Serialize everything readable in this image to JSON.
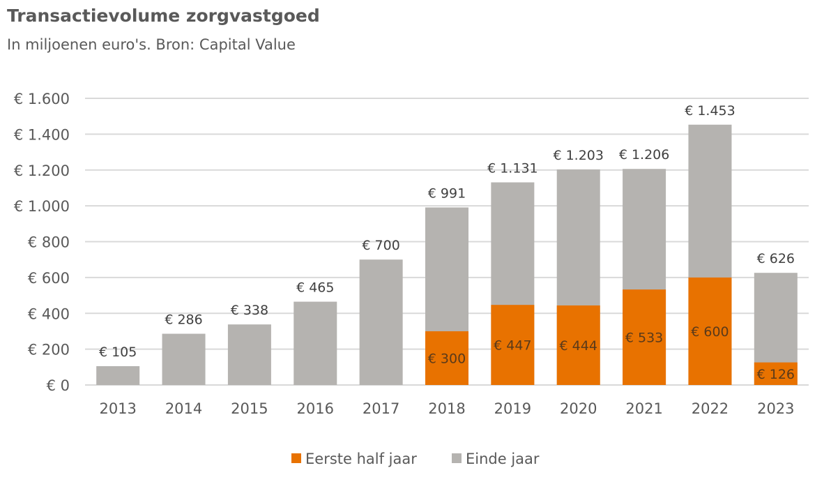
{
  "chart_data": {
    "type": "bar",
    "stacked": "overlay",
    "title": "Transactievolume zorgvastgoed",
    "subtitle": "In miljoenen euro's. Bron: Capital Value",
    "xlabel": "",
    "ylabel": "",
    "categories": [
      "2013",
      "2014",
      "2015",
      "2016",
      "2017",
      "2018",
      "2019",
      "2020",
      "2021",
      "2022",
      "2023"
    ],
    "series": [
      {
        "name": "Einde jaar",
        "color": "#B5B3B0",
        "values": [
          105,
          286,
          338,
          465,
          700,
          991,
          1131,
          1203,
          1206,
          1453,
          626
        ]
      },
      {
        "name": "Eerste half jaar",
        "color": "#E87200",
        "values": [
          null,
          null,
          null,
          null,
          null,
          300,
          447,
          444,
          533,
          600,
          126
        ]
      }
    ],
    "ylim": [
      0,
      1600
    ],
    "yticks": [
      0,
      200,
      400,
      600,
      800,
      1000,
      1200,
      1400,
      1600
    ],
    "ytick_labels": [
      "€ 0",
      "€ 200",
      "€ 400",
      "€ 600",
      "€ 800",
      "€ 1.000",
      "€ 1.200",
      "€ 1.400",
      "€ 1.600"
    ],
    "total_labels": [
      "€ 105",
      "€ 286",
      "€ 338",
      "€ 465",
      "€ 700",
      "€ 991",
      "€ 1.131",
      "€ 1.203",
      "€ 1.206",
      "€ 1.453",
      "€ 626"
    ],
    "half_labels": [
      null,
      null,
      null,
      null,
      null,
      "€ 300",
      "€ 447",
      "€ 444",
      "€ 533",
      "€ 600",
      "€ 126"
    ],
    "grid": true,
    "legend": {
      "position": "bottom",
      "items": [
        "Eerste half jaar",
        "Einde jaar"
      ]
    }
  }
}
